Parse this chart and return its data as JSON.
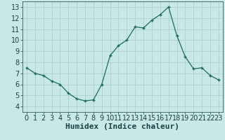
{
  "x": [
    0,
    1,
    2,
    3,
    4,
    5,
    6,
    7,
    8,
    9,
    10,
    11,
    12,
    13,
    14,
    15,
    16,
    17,
    18,
    19,
    20,
    21,
    22,
    23
  ],
  "y": [
    7.5,
    7.0,
    6.8,
    6.3,
    6.0,
    5.2,
    4.7,
    4.5,
    4.6,
    6.0,
    8.6,
    9.5,
    10.0,
    11.2,
    11.1,
    11.8,
    12.3,
    13.0,
    10.4,
    8.5,
    7.4,
    7.5,
    6.8,
    6.4
  ],
  "xlabel": "Humidex (Indice chaleur)",
  "xlim": [
    -0.5,
    23.5
  ],
  "ylim": [
    3.5,
    13.5
  ],
  "xticks": [
    0,
    1,
    2,
    3,
    4,
    5,
    6,
    7,
    8,
    9,
    10,
    11,
    12,
    13,
    14,
    15,
    16,
    17,
    18,
    19,
    20,
    21,
    22,
    23
  ],
  "yticks": [
    4,
    5,
    6,
    7,
    8,
    9,
    10,
    11,
    12,
    13
  ],
  "line_color": "#1a6b5a",
  "marker": "+",
  "bg_color": "#c8e8e8",
  "grid_color": "#b0d0d0",
  "label_color": "#1a4040",
  "xlabel_fontsize": 8,
  "tick_fontsize": 7
}
